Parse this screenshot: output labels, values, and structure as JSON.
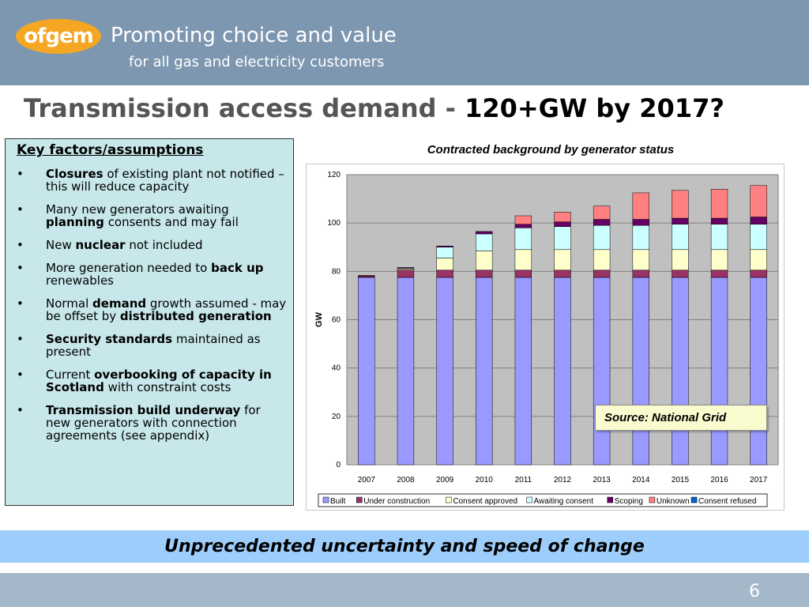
{
  "header": {
    "logo_text": "ofgem",
    "tagline_line1": "Promoting choice and value",
    "tagline_line2": "for all gas and electricity customers",
    "logo_color": "#f5a623",
    "background_color": "#7d97b0"
  },
  "slide": {
    "title_part1": "Transmission access demand - ",
    "title_part2": "120+GW by 2017?",
    "page_number": "6"
  },
  "key_factors": {
    "title": "Key factors/assumptions",
    "items": [
      [
        {
          "t": "Closures",
          "b": true
        },
        {
          "t": " of existing plant not notified – this will reduce capacity",
          "b": false
        }
      ],
      [
        {
          "t": "Many new generators awaiting ",
          "b": false
        },
        {
          "t": "planning",
          "b": true
        },
        {
          "t": " consents and may fail",
          "b": false
        }
      ],
      [
        {
          "t": "New ",
          "b": false
        },
        {
          "t": "nuclear",
          "b": true
        },
        {
          "t": " not included",
          "b": false
        }
      ],
      [
        {
          "t": "More generation needed to ",
          "b": false
        },
        {
          "t": "back up",
          "b": true
        },
        {
          "t": " renewables",
          "b": false
        }
      ],
      [
        {
          "t": "Normal ",
          "b": false
        },
        {
          "t": "demand",
          "b": true
        },
        {
          "t": " growth assumed - may be offset by ",
          "b": false
        },
        {
          "t": "distributed generation",
          "b": true
        }
      ],
      [
        {
          "t": "Security standards",
          "b": true
        },
        {
          "t": " maintained as present",
          "b": false
        }
      ],
      [
        {
          "t": "Current ",
          "b": false
        },
        {
          "t": "overbooking of capacity in Scotland",
          "b": true
        },
        {
          "t": " with constraint costs",
          "b": false
        }
      ],
      [
        {
          "t": "Transmission build underway",
          "b": true
        },
        {
          "t": " for new generators with connection agreements (see appendix)",
          "b": false
        }
      ]
    ]
  },
  "chart_data": {
    "type": "bar",
    "stacked": true,
    "title": "Contracted background by generator status",
    "xlabel": "",
    "ylabel": "GW",
    "ylim": [
      0,
      120
    ],
    "yticks": [
      0,
      20,
      40,
      60,
      80,
      100,
      120
    ],
    "grid": true,
    "legend_position": "bottom",
    "categories": [
      "2007",
      "2008",
      "2009",
      "2010",
      "2011",
      "2012",
      "2013",
      "2014",
      "2015",
      "2016",
      "2017"
    ],
    "series": [
      {
        "name": "Built",
        "color": "#9999ff",
        "values": [
          77.5,
          77.5,
          77.5,
          77.5,
          77.5,
          77.5,
          77.5,
          77.5,
          77.5,
          77.5,
          77.5
        ]
      },
      {
        "name": "Under construction",
        "color": "#993366",
        "values": [
          0.5,
          3,
          3,
          3,
          3,
          3,
          3,
          3,
          3,
          3,
          3
        ]
      },
      {
        "name": "Consent approved",
        "color": "#ffffcc",
        "values": [
          0,
          0.5,
          5,
          8,
          8.5,
          8.5,
          8.5,
          8.5,
          8.5,
          8.5,
          8.5
        ]
      },
      {
        "name": "Awaiting consent",
        "color": "#ccffff",
        "values": [
          0,
          0.3,
          4.5,
          7,
          9,
          9.5,
          10,
          10,
          10.5,
          10.5,
          10.5
        ]
      },
      {
        "name": "Scoping",
        "color": "#660066",
        "values": [
          0.3,
          0.3,
          0.5,
          1,
          1.5,
          2,
          2.5,
          2.5,
          2.5,
          2.5,
          3
        ]
      },
      {
        "name": "Unknown",
        "color": "#ff8080",
        "values": [
          0,
          0,
          0,
          0,
          3.5,
          4,
          5.5,
          11,
          11.5,
          12,
          13
        ]
      },
      {
        "name": "Consent refused",
        "color": "#0066cc",
        "values": [
          0,
          0,
          0,
          0,
          0,
          0,
          0,
          0,
          0,
          0,
          0
        ]
      }
    ],
    "annotation": "Source: National Grid"
  },
  "banner": {
    "text": "Unprecedented uncertainty and speed of change",
    "background_color": "#9dcdfa"
  }
}
